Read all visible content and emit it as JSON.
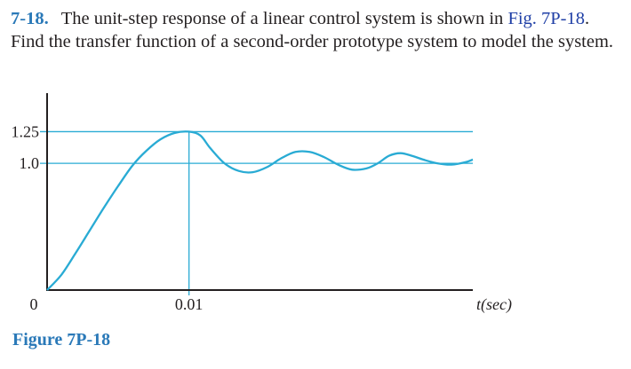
{
  "problem": {
    "number": "7-18.",
    "text_before_ref": "The unit-step response of a linear control system is shown in ",
    "figure_ref": "Fig. 7P-18",
    "text_after_ref": ". Find the transfer function of a second-order prototype system to model the system."
  },
  "figure_caption": "Figure 7P-18",
  "colors": {
    "accent": "#2a79b8",
    "curve": "#29abd4",
    "axis": "#231f20",
    "ref_link": "#1f3fa6"
  },
  "chart_data": {
    "type": "line",
    "title": "",
    "xlabel": "t(sec)",
    "ylabel": "",
    "x_ticks": [
      {
        "value": 0,
        "label": "0"
      },
      {
        "value": 0.01,
        "label": "0.01"
      }
    ],
    "y_ticks": [
      {
        "value": 1.0,
        "label": "1.0"
      },
      {
        "value": 1.25,
        "label": "1.25"
      }
    ],
    "reference_lines": [
      {
        "axis": "y",
        "value": 1.0
      },
      {
        "axis": "y",
        "value": 1.25
      },
      {
        "axis": "x",
        "value": 0.01
      }
    ],
    "xlim": [
      0,
      0.03
    ],
    "ylim": [
      0,
      1.4
    ],
    "series": [
      {
        "points": [
          [
            0,
            0
          ],
          [
            0.001,
            0.12
          ],
          [
            0.002,
            0.29
          ],
          [
            0.003,
            0.47
          ],
          [
            0.004,
            0.65
          ],
          [
            0.005,
            0.82
          ],
          [
            0.006,
            0.98
          ],
          [
            0.007,
            1.1
          ],
          [
            0.008,
            1.19
          ],
          [
            0.009,
            1.24
          ],
          [
            0.01,
            1.25
          ],
          [
            0.0108,
            1.22
          ],
          [
            0.0115,
            1.12
          ],
          [
            0.0125,
            1.0
          ],
          [
            0.0135,
            0.94
          ],
          [
            0.0145,
            0.93
          ],
          [
            0.0155,
            0.97
          ],
          [
            0.0165,
            1.04
          ],
          [
            0.0175,
            1.09
          ],
          [
            0.0185,
            1.09
          ],
          [
            0.0195,
            1.05
          ],
          [
            0.0205,
            0.99
          ],
          [
            0.0215,
            0.95
          ],
          [
            0.0225,
            0.96
          ],
          [
            0.0233,
            1.0
          ],
          [
            0.0241,
            1.06
          ],
          [
            0.0249,
            1.08
          ],
          [
            0.0257,
            1.06
          ],
          [
            0.0265,
            1.03
          ],
          [
            0.0275,
            1.0
          ],
          [
            0.0285,
            0.99
          ],
          [
            0.0295,
            1.01
          ],
          [
            0.03,
            1.03
          ]
        ]
      }
    ]
  }
}
